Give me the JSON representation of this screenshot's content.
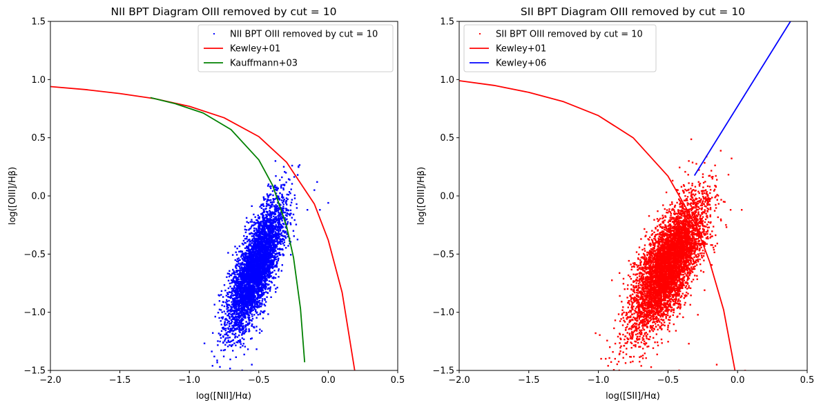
{
  "colors": {
    "blue": "#0000ff",
    "red": "#ff0000",
    "green": "#008000",
    "axis": "#000000"
  },
  "chart_data": [
    {
      "type": "scatter",
      "title": "NII BPT Diagram OIII removed by cut = 10",
      "xlabel": "log([NII]/Hα)",
      "ylabel": "log([OIII]/Hβ)",
      "xlim": [
        -2.0,
        0.5
      ],
      "ylim": [
        -1.5,
        1.5
      ],
      "xticks": [
        -2.0,
        -1.5,
        -1.0,
        -0.5,
        0.0,
        0.5
      ],
      "yticks": [
        -1.5,
        -1.0,
        -0.5,
        0.0,
        0.5,
        1.0,
        1.5
      ],
      "xtick_labels": [
        "−2.0",
        "−1.5",
        "−1.0",
        "−0.5",
        "0.0",
        "0.5"
      ],
      "ytick_labels": [
        "−1.5",
        "−1.0",
        "−0.5",
        "0.0",
        "0.5",
        "1.0",
        "1.5"
      ],
      "legend": "top-right",
      "grid": false,
      "series": [
        {
          "name": "NII BPT OIII removed by cut = 10",
          "kind": "scatter",
          "color": "#0000ff",
          "distribution": {
            "center": [
              -0.52,
              -0.62
            ],
            "sd_x": 0.1,
            "sd_y": 0.27,
            "correlation": 0.74,
            "n_points": 4500,
            "outliers": [
              [
                -0.38,
                0.3
              ],
              [
                -0.32,
                0.25
              ],
              [
                -0.26,
                0.26
              ],
              [
                -0.22,
                0.18
              ],
              [
                -0.08,
                0.12
              ],
              [
                -0.1,
                0.05
              ],
              [
                0.0,
                -0.06
              ],
              [
                -0.06,
                -0.12
              ],
              [
                -0.42,
                0.08
              ],
              [
                -0.82,
                -1.38
              ],
              [
                -0.78,
                -1.47
              ],
              [
                -0.62,
                -1.5
              ],
              [
                -0.55,
                -1.45
              ],
              [
                -0.7,
                -1.25
              ],
              [
                -0.3,
                -0.02
              ],
              [
                -0.15,
                -0.12
              ]
            ]
          }
        },
        {
          "name": "Kewley+01",
          "kind": "line",
          "color": "#ff0000",
          "x": [
            -2.0,
            -1.75,
            -1.5,
            -1.25,
            -1.0,
            -0.75,
            -0.5,
            -0.3,
            -0.1,
            0.0,
            0.1,
            0.2,
            0.24
          ],
          "y": [
            0.94,
            0.914,
            0.88,
            0.836,
            0.77,
            0.672,
            0.51,
            0.29,
            -0.07,
            -0.38,
            -0.83,
            -1.57,
            -1.5
          ]
        },
        {
          "name": "Kauffmann+03",
          "kind": "line",
          "color": "#008000",
          "x": [
            -1.28,
            -1.1,
            -0.9,
            -0.7,
            -0.5,
            -0.4,
            -0.3,
            -0.25,
            -0.2,
            -0.17
          ],
          "y": [
            0.845,
            0.792,
            0.712,
            0.57,
            0.31,
            0.09,
            -0.26,
            -0.53,
            -0.97,
            -1.43
          ]
        }
      ]
    },
    {
      "type": "scatter",
      "title": "SII BPT Diagram OIII removed by cut = 10",
      "xlabel": "log([SII]/Hα)",
      "ylabel": "log([OIII]/Hβ)",
      "xlim": [
        -2.0,
        0.5
      ],
      "ylim": [
        -1.5,
        1.5
      ],
      "xticks": [
        -2.0,
        -1.5,
        -1.0,
        -0.5,
        0.0,
        0.5
      ],
      "yticks": [
        -1.5,
        -1.0,
        -0.5,
        0.0,
        0.5,
        1.0,
        1.5
      ],
      "xtick_labels": [
        "−2.0",
        "−1.5",
        "−1.0",
        "−0.5",
        "0.0",
        "0.5"
      ],
      "ytick_labels": [
        "−1.5",
        "−1.0",
        "−0.5",
        "0.0",
        "0.5",
        "1.0",
        "1.5"
      ],
      "legend": "top-left",
      "grid": false,
      "series": [
        {
          "name": "SII BPT OIII removed by cut = 10",
          "kind": "scatter",
          "color": "#ff0000",
          "distribution": {
            "center": [
              -0.5,
              -0.6
            ],
            "sd_x": 0.13,
            "sd_y": 0.28,
            "correlation": 0.7,
            "n_points": 5500,
            "outliers": [
              [
                -1.02,
                -1.18
              ],
              [
                -0.98,
                -1.4
              ],
              [
                -0.93,
                -1.46
              ],
              [
                -0.88,
                -1.4
              ],
              [
                -0.85,
                -1.5
              ],
              [
                -0.35,
                0.3
              ],
              [
                -0.28,
                0.12
              ],
              [
                -0.2,
                0.08
              ],
              [
                -0.1,
                -0.05
              ],
              [
                -0.05,
                -0.12
              ],
              [
                0.03,
                -0.12
              ],
              [
                -0.15,
                -1.45
              ],
              [
                -0.35,
                -1.27
              ],
              [
                -0.42,
                -1.5
              ]
            ]
          }
        },
        {
          "name": "Kewley+01",
          "kind": "line",
          "color": "#ff0000",
          "x": [
            -2.0,
            -1.75,
            -1.5,
            -1.25,
            -1.0,
            -0.75,
            -0.5,
            -0.3,
            -0.2,
            -0.1,
            0.0,
            0.05,
            0.06
          ],
          "y": [
            0.99,
            0.95,
            0.89,
            0.81,
            0.69,
            0.5,
            0.17,
            -0.25,
            -0.57,
            -0.98,
            -1.62,
            -1.5,
            -1.5
          ]
        },
        {
          "name": "Kewley+06",
          "kind": "line",
          "color": "#0000ff",
          "x": [
            -0.31,
            0.38
          ],
          "y": [
            0.175,
            1.5
          ]
        }
      ]
    }
  ]
}
